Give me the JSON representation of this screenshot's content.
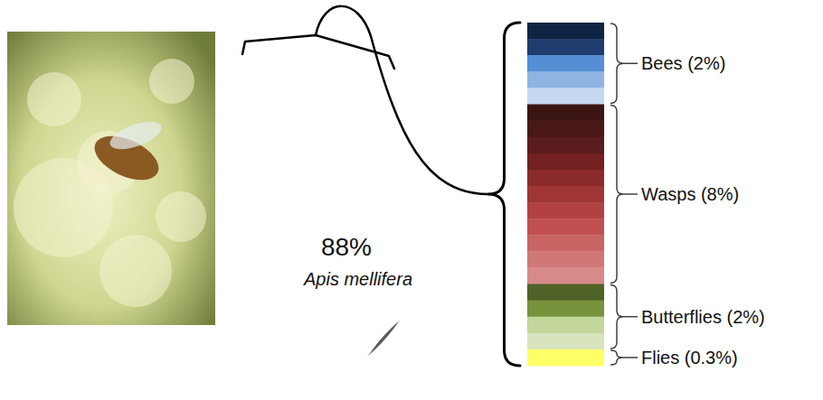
{
  "chart_data": {
    "type": "pie",
    "categories": [
      null,
      null,
      null,
      null,
      "Apis mellifera"
    ],
    "values": [
      2,
      8,
      2,
      0.3,
      88
    ],
    "value_labels": [
      "Bees (2%)",
      "Wasps (8%)",
      "Butterflies (2%)",
      "Flies (0.3%)",
      "88%"
    ],
    "colors": [
      [
        "#0f2444",
        "#1f3c6e",
        "#558ed5",
        "#8eb4e3",
        "#c6d9f1"
      ],
      [
        "#3b1414",
        "#4a1818",
        "#5a1c1c",
        "#722020",
        "#8b2a2a",
        "#a03535",
        "#b24242",
        "#c05050",
        "#c86464",
        "#d07878",
        "#d88a8a"
      ],
      [
        "#4f6228",
        "#77933c",
        "#c3d69b",
        "#d7e4bd"
      ],
      [
        "#ffff66"
      ],
      [
        "#595959"
      ]
    ],
    "data_labels": true
  }
}
